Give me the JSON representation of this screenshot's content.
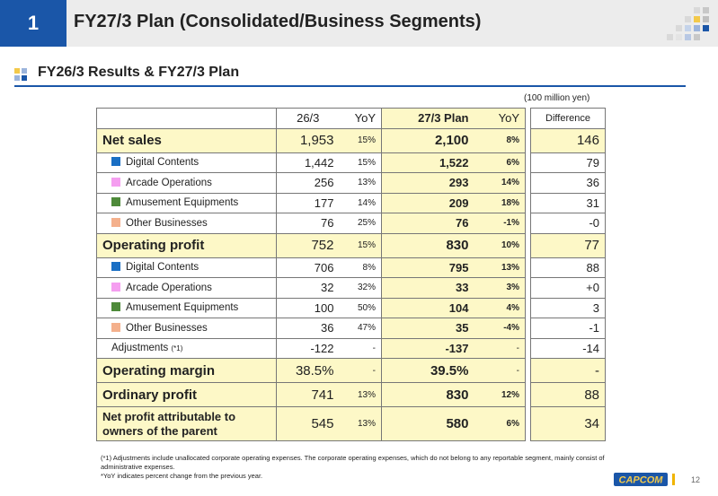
{
  "header": {
    "page_number": "1",
    "title": "FY27/3 Plan (Consolidated/Business Segments)"
  },
  "subtitle": "FY26/3 Results & FY27/3 Plan",
  "unit": "(100 million yen)",
  "table": {
    "headers": {
      "prev": "26/3",
      "prev_yoy": "YoY",
      "plan": "27/3 Plan",
      "plan_yoy": "YoY",
      "diff": "Difference"
    },
    "rows": [
      {
        "label": "Net sales",
        "prev": "1,953",
        "prev_yoy": "15%",
        "plan": "2,100",
        "plan_yoy": "8%",
        "diff": "146"
      },
      {
        "label": "Digital Contents",
        "prev": "1,442",
        "prev_yoy": "15%",
        "plan": "1,522",
        "plan_yoy": "6%",
        "diff": "79"
      },
      {
        "label": "Arcade Operations",
        "prev": "256",
        "prev_yoy": "13%",
        "plan": "293",
        "plan_yoy": "14%",
        "diff": "36"
      },
      {
        "label": "Amusement Equipments",
        "prev": "177",
        "prev_yoy": "14%",
        "plan": "209",
        "plan_yoy": "18%",
        "diff": "31"
      },
      {
        "label": "Other Businesses",
        "prev": "76",
        "prev_yoy": "25%",
        "plan": "76",
        "plan_yoy": "-1%",
        "diff": "-0"
      },
      {
        "label": "Operating profit",
        "prev": "752",
        "prev_yoy": "15%",
        "plan": "830",
        "plan_yoy": "10%",
        "diff": "77"
      },
      {
        "label": "Digital Contents",
        "prev": "706",
        "prev_yoy": "8%",
        "plan": "795",
        "plan_yoy": "13%",
        "diff": "88"
      },
      {
        "label": "Arcade Operations",
        "prev": "32",
        "prev_yoy": "32%",
        "plan": "33",
        "plan_yoy": "3%",
        "diff": "+0"
      },
      {
        "label": "Amusement Equipments",
        "prev": "100",
        "prev_yoy": "50%",
        "plan": "104",
        "plan_yoy": "4%",
        "diff": "3"
      },
      {
        "label": "Other Businesses",
        "prev": "36",
        "prev_yoy": "47%",
        "plan": "35",
        "plan_yoy": "-4%",
        "diff": "-1"
      },
      {
        "label": "Adjustments",
        "note": "(*1)",
        "prev": "-122",
        "prev_yoy": "-",
        "plan": "-137",
        "plan_yoy": "-",
        "diff": "-14"
      },
      {
        "label": "Operating margin",
        "prev": "38.5%",
        "prev_yoy": "-",
        "plan": "39.5%",
        "plan_yoy": "-",
        "diff": "-"
      },
      {
        "label": "Ordinary profit",
        "prev": "741",
        "prev_yoy": "13%",
        "plan": "830",
        "plan_yoy": "12%",
        "diff": "88"
      },
      {
        "label_line1": "Net profit attributable to",
        "label_line2": "owners of the parent",
        "prev": "545",
        "prev_yoy": "13%",
        "plan": "580",
        "plan_yoy": "6%",
        "diff": "34"
      }
    ]
  },
  "segment_colors": {
    "digital": "#1a6fc4",
    "arcade": "#f59ef0",
    "amusement": "#4e8a3a",
    "other": "#f4b08c"
  },
  "footnotes": [
    "(*1) Adjustments include unallocated corporate operating expenses. The corporate operating expenses, which do not belong to any reportable segment, mainly consist of administrative expenses.",
    "*YoY indicates percent change from the previous year."
  ],
  "logo_text": "CAPCOM",
  "slide_number": "12"
}
